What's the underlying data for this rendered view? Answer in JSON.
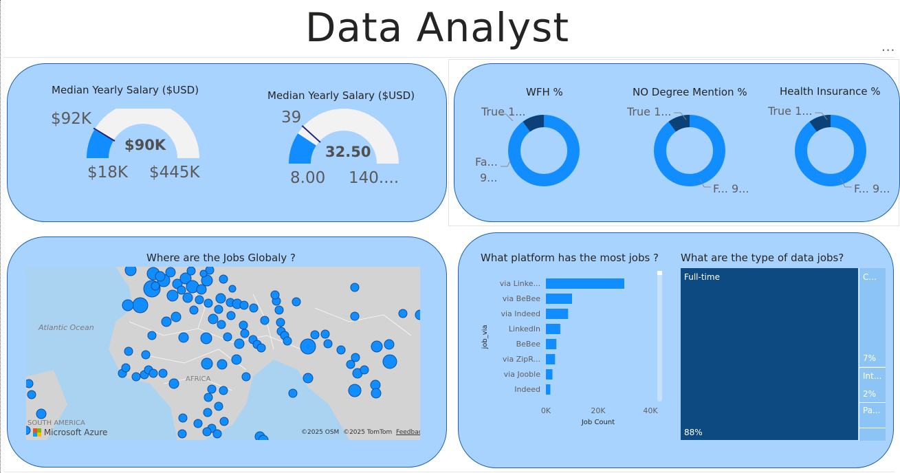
{
  "page": {
    "title": "Data Analyst",
    "more": "..."
  },
  "gauge1": {
    "title": "Median Yearly Salary ($USD)",
    "target": "$92K",
    "value": "$90K",
    "min": "$18K",
    "max": "$445K",
    "value_num": 90,
    "min_num": 18,
    "max_num": 445,
    "target_num": 92
  },
  "gauge2": {
    "title": "Median Yearly Salary ($USD)",
    "target": "39",
    "value": "32.50",
    "min": "8.00",
    "max": "140....",
    "value_num": 32.5,
    "min_num": 8,
    "max_num": 140,
    "target_num": 39
  },
  "donuts": [
    {
      "title": "WFH %",
      "true_label": "True 1...",
      "false_label_1": "Fa...",
      "false_label_2": "9...",
      "true_fraction": 0.1
    },
    {
      "title": "NO Degree Mention %",
      "true_label": "True 1...",
      "false_label": "F... 9...",
      "true_fraction": 0.1
    },
    {
      "title": "Health Insurance %",
      "true_label": "True 1...",
      "false_label": "F... 9...",
      "true_fraction": 0.1
    }
  ],
  "map": {
    "title": "Where are the Jobs Globaly ?",
    "ocean": "Atlantic Ocean",
    "africa": "AFRICA",
    "south_america": "SOUTH AMERICA",
    "brand": "Microsoft Azure",
    "osm": "©2025 OSM",
    "tomtom": "©2025 TomTom",
    "feedback": "Feedback"
  },
  "platform_chart": {
    "title": "What platform has the most jobs ?",
    "chart_data": {
      "type": "bar",
      "orientation": "horizontal",
      "categories": [
        "via Linke...",
        "via BeBee",
        "via Indeed",
        "LinkedIn",
        "BeBee",
        "via ZipR...",
        "via Jooble",
        "Indeed"
      ],
      "values": [
        30000,
        10000,
        8500,
        5500,
        4000,
        3500,
        2500,
        1700
      ],
      "xlabel": "Job Count",
      "ylabel": "job_via",
      "xticks": [
        "0K",
        "20K",
        "40K"
      ],
      "xlim": [
        0,
        40000
      ],
      "color": "#118dff"
    }
  },
  "type_chart": {
    "title": "What are the type of data jobs?",
    "chart_data": {
      "type": "treemap",
      "items": [
        {
          "label": "Full-time",
          "pct": "88%",
          "value": 88
        },
        {
          "label": "C...",
          "pct": "7%",
          "value": 7
        },
        {
          "label": "Int...",
          "pct": "2%",
          "value": 2
        },
        {
          "label": "Pa...",
          "pct": "",
          "value": 2
        },
        {
          "label": "",
          "pct": "",
          "value": 1
        }
      ]
    }
  },
  "colors": {
    "panel": "#a9d3ff",
    "accent": "#118dff",
    "dark": "#0c4178",
    "treemap_dark": "#0e4a82",
    "treemap_light": "#8cc4f6"
  }
}
